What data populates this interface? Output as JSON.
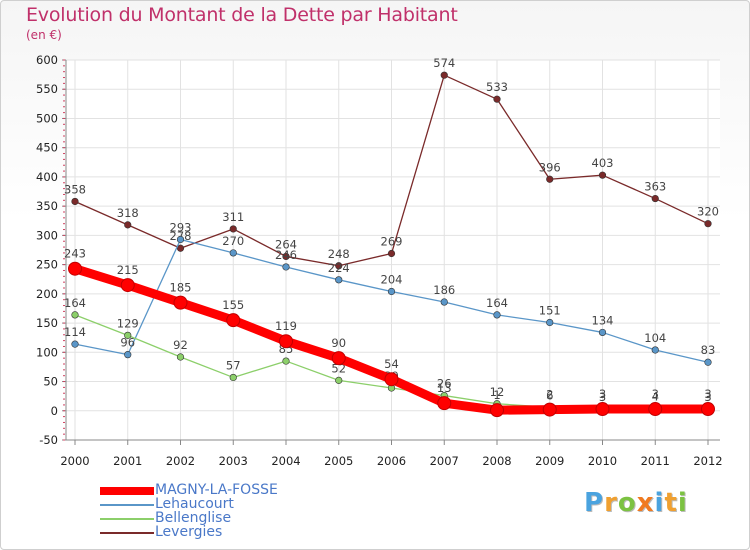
{
  "title": "Evolution du Montant de la Dette par Habitant",
  "subtitle": "(en €)",
  "logo": {
    "letters": [
      "P",
      "r",
      "o",
      "x",
      "i",
      "t",
      "i"
    ],
    "colors": [
      "#4aa3df",
      "#f0a030",
      "#7cc242",
      "#f07a20",
      "#4aa3df",
      "#f0a030",
      "#7cc242"
    ]
  },
  "chart_data": {
    "type": "line",
    "title": "Evolution du Montant de la Dette par Habitant",
    "ylabel": "(en €)",
    "xlabel": "",
    "x": [
      "2000",
      "2001",
      "2002",
      "2003",
      "2004",
      "2005",
      "2006",
      "2007",
      "2008",
      "2009",
      "2010",
      "2011",
      "2012"
    ],
    "ylim": [
      -50,
      600
    ],
    "yticks": [
      "-50",
      "0",
      "50",
      "100",
      "150",
      "200",
      "250",
      "300",
      "350",
      "400",
      "450",
      "500",
      "550",
      "600"
    ],
    "grid": true,
    "legend_position": "bottom-left",
    "series": [
      {
        "name": "Levergies",
        "color": "#7a2a2a",
        "values": [
          358,
          318,
          278,
          311,
          264,
          248,
          269,
          574,
          533,
          396,
          403,
          363,
          320
        ],
        "labels": [
          "358",
          "318",
          "278",
          "311",
          "264",
          "248",
          "269",
          "574",
          "533",
          "396",
          "403",
          "363",
          "320"
        ]
      },
      {
        "name": "Lehaucourt",
        "color": "#5a96c8",
        "values": [
          114,
          96,
          293,
          270,
          246,
          224,
          204,
          186,
          164,
          151,
          134,
          104,
          83
        ],
        "labels": [
          "114",
          "96",
          "293",
          "270",
          "246",
          "224",
          "204",
          "186",
          "164",
          "151",
          "134",
          "104",
          "83"
        ]
      },
      {
        "name": "Bellenglise",
        "color": "#8ccf6a",
        "values": [
          164,
          129,
          92,
          57,
          85,
          52,
          39,
          26,
          12,
          6,
          3,
          4,
          3
        ],
        "labels": [
          "164",
          "129",
          "92",
          "57",
          "85",
          "52",
          "39",
          "26",
          "12",
          "6",
          "3",
          "4",
          "3"
        ]
      },
      {
        "name": "MAGNY-LA-FOSSE",
        "color": "#ff0000",
        "values": [
          243,
          215,
          185,
          155,
          119,
          90,
          54,
          13,
          1,
          2,
          3,
          3,
          3
        ],
        "labels": [
          "243",
          "215",
          "185",
          "155",
          "119",
          "90",
          "54",
          "13",
          "1",
          "2",
          "3",
          "3",
          "3"
        ]
      }
    ],
    "legend": [
      {
        "name": "MAGNY-LA-FOSSE",
        "color": "#ff0000",
        "thick": true
      },
      {
        "name": "Lehaucourt",
        "color": "#5a96c8",
        "thick": false
      },
      {
        "name": "Bellenglise",
        "color": "#8ccf6a",
        "thick": false
      },
      {
        "name": "Levergies",
        "color": "#7a2a2a",
        "thick": false
      }
    ]
  }
}
